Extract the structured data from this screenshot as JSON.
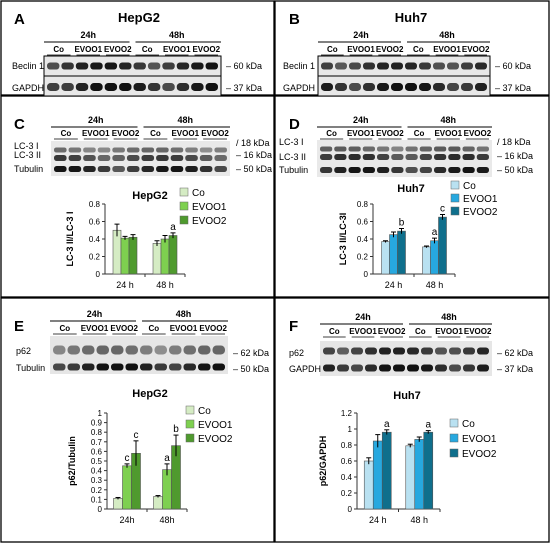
{
  "panels": [
    {
      "letter": "A",
      "cell_title": "HepG2"
    },
    {
      "letter": "B",
      "cell_title": "Huh7"
    },
    {
      "letter": "C"
    },
    {
      "letter": "D"
    },
    {
      "letter": "E"
    },
    {
      "letter": "F"
    }
  ],
  "blots": {
    "time_labels": [
      "24h",
      "48h"
    ],
    "lane_labels": [
      "Co",
      "EVOO1",
      "EVOO2"
    ],
    "A": [
      {
        "protein": "Beclin 1",
        "kda": "60 kDa"
      },
      {
        "protein": "GAPDH",
        "kda": "37 kDa"
      }
    ],
    "B": [
      {
        "protein": "Beclin 1",
        "kda": "60 kDa"
      },
      {
        "protein": "GAPDH",
        "kda": "37 kDa"
      }
    ],
    "C": [
      {
        "protein": "LC-3 I",
        "protein2": "LC-3 II",
        "kda": "18 kDa",
        "kda2": "16 kDa"
      },
      {
        "protein": "Tubulin",
        "kda": "50 kDa"
      }
    ],
    "D": [
      {
        "protein": "LC-3 I",
        "protein2": "LC-3 II",
        "kda": "18 kDa",
        "kda2": "16 kDa"
      },
      {
        "protein": "Tubulin",
        "kda": "50 kDa"
      }
    ],
    "E": [
      {
        "protein": "p62",
        "kda": "62 kDa"
      },
      {
        "protein": "Tubulin",
        "kda": "50 kDa"
      }
    ],
    "F": [
      {
        "protein": "p62",
        "kda": "62 kDa"
      },
      {
        "protein": "GAPDH",
        "kda": "37 kDa"
      }
    ]
  },
  "chart_data": [
    {
      "type": "bar",
      "panel": "C",
      "title": "HepG2",
      "ylabel": "LC-3 II/LC-3 I",
      "categories": [
        "24 h",
        "48 h"
      ],
      "ylim": [
        0,
        0.8
      ],
      "yticks": [
        0,
        0.2,
        0.4,
        0.6,
        0.8
      ],
      "tick_labels": [
        "0",
        "0.2",
        "0.4",
        "0.6",
        "0.8"
      ],
      "series": [
        {
          "name": "Co",
          "values": [
            0.5,
            0.35
          ],
          "errors": [
            0.07,
            0.03
          ],
          "annotations": [
            "",
            ""
          ],
          "color": "#d5ecc4"
        },
        {
          "name": "EVOO1",
          "values": [
            0.41,
            0.4
          ],
          "errors": [
            0.02,
            0.04
          ],
          "annotations": [
            "",
            ""
          ],
          "color": "#7ed050"
        },
        {
          "name": "EVOO2",
          "values": [
            0.42,
            0.44
          ],
          "errors": [
            0.03,
            0.03
          ],
          "annotations": [
            "",
            "a"
          ],
          "color": "#4f9a2e"
        }
      ]
    },
    {
      "type": "bar",
      "panel": "D",
      "title": "Huh7",
      "ylabel": "LC-3 II/LC-3I",
      "categories": [
        "24 h",
        "48 h"
      ],
      "ylim": [
        0,
        0.8
      ],
      "yticks": [
        0,
        0.2,
        0.4,
        0.6,
        0.8
      ],
      "tick_labels": [
        "0",
        "0.2",
        "0.4",
        "0.6",
        "0.8"
      ],
      "series": [
        {
          "name": "Co",
          "values": [
            0.37,
            0.31
          ],
          "errors": [
            0.01,
            0.01
          ],
          "annotations": [
            "",
            ""
          ],
          "color": "#b9e1f1"
        },
        {
          "name": "EVOO1",
          "values": [
            0.45,
            0.38
          ],
          "errors": [
            0.03,
            0.03
          ],
          "annotations": [
            "",
            "a"
          ],
          "color": "#27a8df"
        },
        {
          "name": "EVOO2",
          "values": [
            0.49,
            0.65
          ],
          "errors": [
            0.03,
            0.03
          ],
          "annotations": [
            "b",
            "c"
          ],
          "color": "#0f6f8c"
        }
      ]
    },
    {
      "type": "bar",
      "panel": "E",
      "title": "HepG2",
      "ylabel": "p62/Tubulin",
      "categories": [
        "24h",
        "48h"
      ],
      "ylim": [
        0,
        1
      ],
      "yticks": [
        0,
        0.1,
        0.2,
        0.3,
        0.4,
        0.5,
        0.6,
        0.7,
        0.8,
        0.9,
        1
      ],
      "tick_labels": [
        "0",
        "0.1",
        "0.2",
        "0.3",
        "0.4",
        "0.5",
        "0.6",
        "0.7",
        "0.8",
        "0.9",
        "1"
      ],
      "series": [
        {
          "name": "Co",
          "values": [
            0.11,
            0.13
          ],
          "errors": [
            0.01,
            0.01
          ],
          "annotations": [
            "",
            ""
          ],
          "color": "#d5ecc4"
        },
        {
          "name": "EVOO1",
          "values": [
            0.45,
            0.41
          ],
          "errors": [
            0.02,
            0.06
          ],
          "annotations": [
            "c",
            "a"
          ],
          "color": "#7ed050"
        },
        {
          "name": "EVOO2",
          "values": [
            0.58,
            0.66
          ],
          "errors": [
            0.13,
            0.11
          ],
          "annotations": [
            "c",
            "b"
          ],
          "color": "#4f9a2e"
        }
      ]
    },
    {
      "type": "bar",
      "panel": "F",
      "title": "Huh7",
      "ylabel": "p62/GAPDH",
      "categories": [
        "24 h",
        "48 h"
      ],
      "ylim": [
        0,
        1.2
      ],
      "yticks": [
        0,
        0.2,
        0.4,
        0.6,
        0.8,
        1,
        1.2
      ],
      "tick_labels": [
        "0",
        "0.2",
        "0.4",
        "0.6",
        "0.8",
        "1",
        "1.2"
      ],
      "series": [
        {
          "name": "Co",
          "values": [
            0.6,
            0.79
          ],
          "errors": [
            0.04,
            0.02
          ],
          "annotations": [
            "",
            ""
          ],
          "color": "#b9e1f1"
        },
        {
          "name": "EVOO1",
          "values": [
            0.85,
            0.87
          ],
          "errors": [
            0.08,
            0.03
          ],
          "annotations": [
            "",
            ""
          ],
          "color": "#27a8df"
        },
        {
          "name": "EVOO2",
          "values": [
            0.96,
            0.96
          ],
          "errors": [
            0.03,
            0.02
          ],
          "annotations": [
            "a",
            "a"
          ],
          "color": "#0f6f8c"
        }
      ]
    }
  ]
}
